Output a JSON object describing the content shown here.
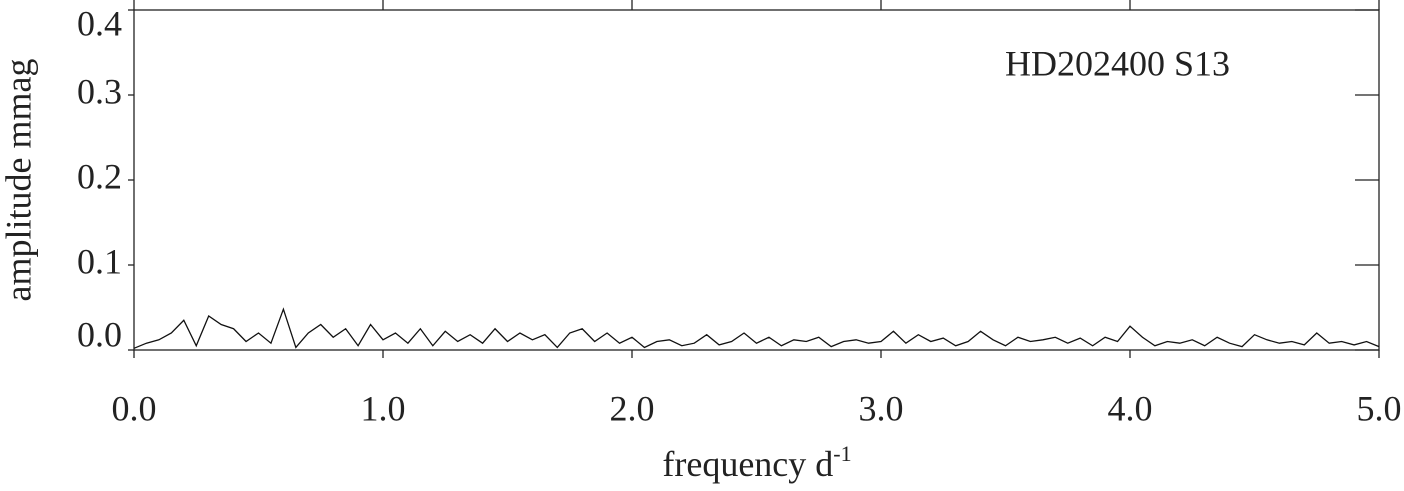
{
  "chart_data": {
    "type": "line",
    "x_label": "frequency d",
    "x_label_superscript": "-1",
    "y_label": "amplitude mmag",
    "annotation": "HD202400 S13",
    "color": "#111111",
    "xlim": [
      0,
      5
    ],
    "xticks": [
      {
        "value": 0,
        "label": "0.0"
      },
      {
        "value": 1,
        "label": "1.0"
      },
      {
        "value": 2,
        "label": "2.0"
      },
      {
        "value": 3,
        "label": "3.0"
      },
      {
        "value": 4,
        "label": "4.0"
      },
      {
        "value": 5,
        "label": "5.0"
      }
    ],
    "ylim": [
      0,
      0.4
    ],
    "yticks": [
      {
        "value": 0,
        "label": "0.0"
      },
      0.1,
      0.2,
      0.3,
      0.4
    ],
    "x": [
      0.0,
      0.05,
      0.1,
      0.15,
      0.2,
      0.25,
      0.3,
      0.35,
      0.4,
      0.45,
      0.5,
      0.55,
      0.6,
      0.65,
      0.7,
      0.75,
      0.8,
      0.85,
      0.9,
      0.95,
      1.0,
      1.05,
      1.1,
      1.15,
      1.2,
      1.25,
      1.3,
      1.35,
      1.4,
      1.45,
      1.5,
      1.55,
      1.6,
      1.65,
      1.7,
      1.75,
      1.8,
      1.85,
      1.9,
      1.95,
      2.0,
      2.05,
      2.1,
      2.15,
      2.2,
      2.25,
      2.3,
      2.35,
      2.4,
      2.45,
      2.5,
      2.55,
      2.6,
      2.65,
      2.7,
      2.75,
      2.8,
      2.85,
      2.9,
      2.95,
      3.0,
      3.05,
      3.1,
      3.15,
      3.2,
      3.25,
      3.3,
      3.35,
      3.4,
      3.45,
      3.5,
      3.55,
      3.6,
      3.65,
      3.7,
      3.75,
      3.8,
      3.85,
      3.9,
      3.95,
      4.0,
      4.05,
      4.1,
      4.15,
      4.2,
      4.25,
      4.3,
      4.35,
      4.4,
      4.45,
      4.5,
      4.55,
      4.6,
      4.65,
      4.7,
      4.75,
      4.8,
      4.85,
      4.9,
      4.95,
      5.0
    ],
    "values": [
      0.002,
      0.008,
      0.012,
      0.02,
      0.035,
      0.005,
      0.04,
      0.03,
      0.025,
      0.01,
      0.02,
      0.008,
      0.048,
      0.003,
      0.02,
      0.03,
      0.015,
      0.025,
      0.005,
      0.03,
      0.012,
      0.02,
      0.008,
      0.025,
      0.005,
      0.022,
      0.01,
      0.018,
      0.008,
      0.025,
      0.01,
      0.02,
      0.012,
      0.018,
      0.003,
      0.02,
      0.025,
      0.01,
      0.02,
      0.008,
      0.015,
      0.003,
      0.01,
      0.012,
      0.005,
      0.008,
      0.018,
      0.006,
      0.01,
      0.02,
      0.008,
      0.015,
      0.005,
      0.012,
      0.01,
      0.015,
      0.004,
      0.01,
      0.012,
      0.008,
      0.01,
      0.022,
      0.008,
      0.018,
      0.01,
      0.014,
      0.005,
      0.01,
      0.022,
      0.012,
      0.005,
      0.015,
      0.01,
      0.012,
      0.015,
      0.008,
      0.014,
      0.005,
      0.015,
      0.01,
      0.028,
      0.015,
      0.005,
      0.01,
      0.008,
      0.012,
      0.005,
      0.015,
      0.008,
      0.004,
      0.018,
      0.012,
      0.008,
      0.01,
      0.006,
      0.02,
      0.008,
      0.01,
      0.006,
      0.01,
      0.004
    ]
  }
}
